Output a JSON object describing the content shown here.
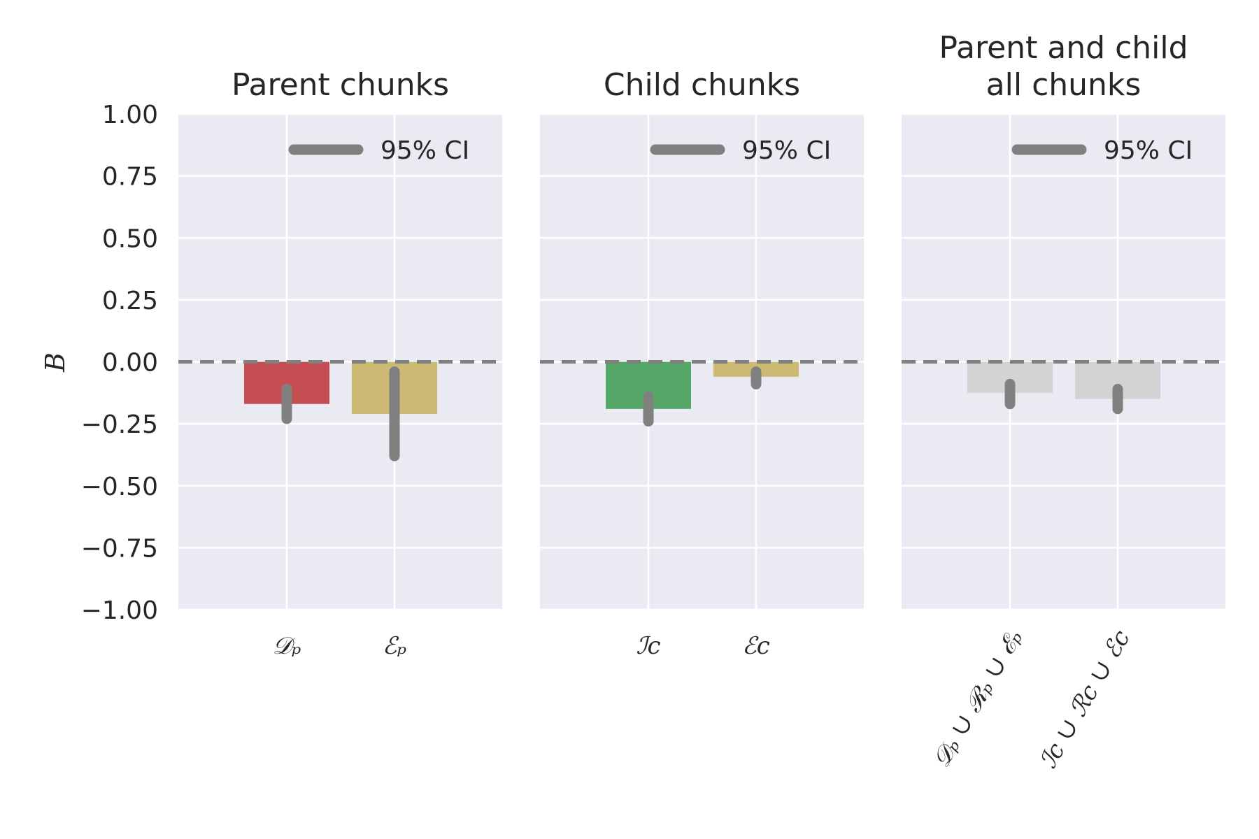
{
  "chart_data": [
    {
      "type": "bar",
      "title_lines": [
        "Parent chunks"
      ],
      "categories": [
        "𝒟ₚ",
        "ℰₚ"
      ],
      "values": [
        -0.17,
        -0.21
      ],
      "ci": [
        [
          -0.23,
          -0.11
        ],
        [
          -0.38,
          -0.04
        ]
      ],
      "colors": [
        "#c44e52",
        "#ccb974"
      ],
      "ylabel": "B",
      "ylim": [
        -1.0,
        1.0
      ],
      "yticks": [
        "1.00",
        "0.75",
        "0.50",
        "0.25",
        "0.00",
        "−0.25",
        "−0.50",
        "−0.75",
        "−1.00"
      ],
      "legend": "95% CI",
      "legend_position": "upper right",
      "reference_line": 0.0,
      "grid": true
    },
    {
      "type": "bar",
      "title_lines": [
        "Child chunks"
      ],
      "categories": [
        "ℐ𝑐",
        "ℰ𝑐"
      ],
      "values": [
        -0.19,
        -0.06
      ],
      "ci": [
        [
          -0.24,
          -0.14
        ],
        [
          -0.09,
          -0.04
        ]
      ],
      "colors": [
        "#55a868",
        "#ccb974"
      ],
      "ylim": [
        -1.0,
        1.0
      ],
      "legend": "95% CI",
      "legend_position": "upper right",
      "reference_line": 0.0,
      "grid": true
    },
    {
      "type": "bar",
      "title_lines": [
        "Parent and child",
        "all chunks"
      ],
      "categories": [
        "𝒟ₚ ∪ ℛₚ ∪ ℰₚ",
        "ℐ𝑐 ∪ ℛ𝑐 ∪ ℰ𝑐"
      ],
      "values": [
        -0.125,
        -0.15
      ],
      "ci": [
        [
          -0.17,
          -0.09
        ],
        [
          -0.19,
          -0.11
        ]
      ],
      "colors": [
        "#d3d3d3",
        "#d3d3d3"
      ],
      "ylim": [
        -1.0,
        1.0
      ],
      "legend": "95% CI",
      "legend_position": "upper right",
      "reference_line": 0.0,
      "grid": true
    }
  ]
}
